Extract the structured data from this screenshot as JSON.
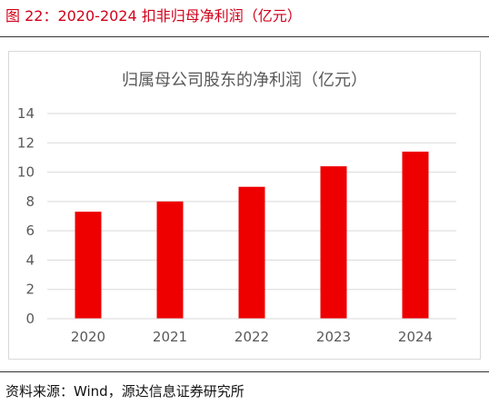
{
  "figure": {
    "title": "图 22：2020-2024 扣非归母净利润（亿元）",
    "source": "资料来源：Wind，源达信息证券研究所"
  },
  "colors": {
    "accent": "#d0021b",
    "bar": "#ee0000",
    "grid": "#d9d9d9",
    "axis_text": "#595959"
  },
  "chart_data": {
    "type": "bar",
    "title": "归属母公司股东的净利润（亿元）",
    "categories": [
      "2020",
      "2021",
      "2022",
      "2023",
      "2024"
    ],
    "values": [
      7.3,
      8.0,
      9.0,
      10.4,
      11.4
    ],
    "yticks": [
      0,
      2,
      4,
      6,
      8,
      10,
      12,
      14
    ],
    "ylim": [
      0,
      14
    ],
    "grid": true,
    "legend": "none"
  }
}
